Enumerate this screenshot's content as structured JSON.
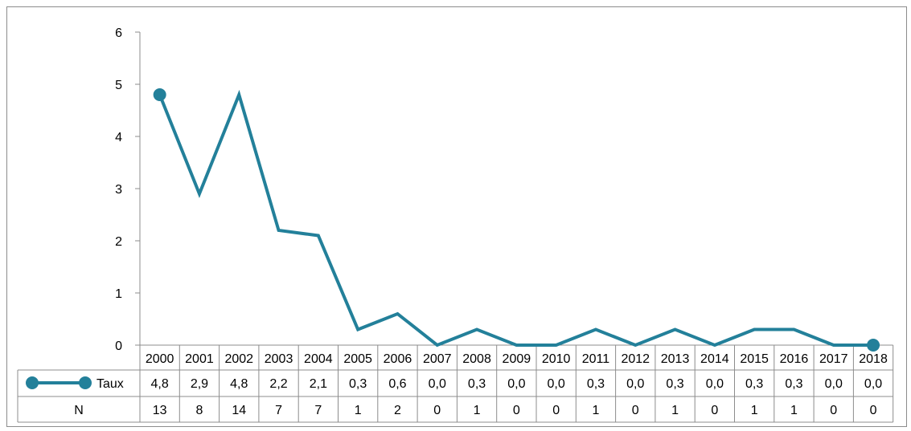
{
  "chart_data": {
    "type": "line",
    "title": "",
    "xlabel": "",
    "ylabel": "",
    "ylim": [
      0,
      6
    ],
    "yticks": [
      0,
      1,
      2,
      3,
      4,
      5,
      6
    ],
    "grid": false,
    "legend": "data-table",
    "line_color": "#23809a",
    "categories": [
      "2000",
      "2001",
      "2002",
      "2003",
      "2004",
      "2005",
      "2006",
      "2007",
      "2008",
      "2009",
      "2010",
      "2011",
      "2012",
      "2013",
      "2014",
      "2015",
      "2016",
      "2017",
      "2018"
    ],
    "series": [
      {
        "name": "Taux",
        "values": [
          4.8,
          2.9,
          4.8,
          2.2,
          2.1,
          0.3,
          0.6,
          0.0,
          0.3,
          0.0,
          0.0,
          0.3,
          0.0,
          0.3,
          0.0,
          0.3,
          0.3,
          0.0,
          0.0
        ]
      }
    ],
    "data_table": {
      "rows": [
        {
          "label": "Taux",
          "values": [
            "4,8",
            "2,9",
            "4,8",
            "2,2",
            "2,1",
            "0,3",
            "0,6",
            "0,0",
            "0,3",
            "0,0",
            "0,0",
            "0,3",
            "0,0",
            "0,3",
            "0,0",
            "0,3",
            "0,3",
            "0,0",
            "0,0"
          ]
        },
        {
          "label": "N",
          "values": [
            "13",
            "8",
            "14",
            "7",
            "7",
            "1",
            "2",
            "0",
            "1",
            "0",
            "0",
            "1",
            "0",
            "1",
            "0",
            "1",
            "1",
            "0",
            "0"
          ]
        }
      ]
    }
  }
}
